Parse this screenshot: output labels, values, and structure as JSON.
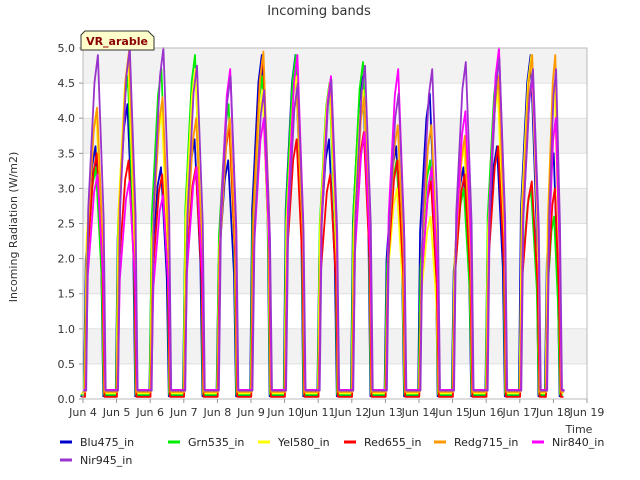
{
  "chart_data": {
    "type": "line",
    "title": "Incoming bands",
    "xlabel": "Time",
    "ylabel": "Incoming Radiation (W/m2)",
    "site_label": "VR_arable",
    "ylim": [
      0,
      5.0
    ],
    "yticks": [
      "0.0",
      "0.5",
      "1.0",
      "1.5",
      "2.0",
      "2.5",
      "3.0",
      "3.5",
      "4.0",
      "4.5",
      "5.0"
    ],
    "xlim": [
      4,
      19
    ],
    "xticks": [
      "Jun 4",
      "Jun 5",
      "Jun 6",
      "Jun 7",
      "Jun 8",
      "Jun 9",
      "Jun 10",
      "Jun 11",
      "Jun 12",
      "Jun 13",
      "Jun 14",
      "Jun 15",
      "Jun 16",
      "Jun 17",
      "Jun 18",
      "Jun 19"
    ],
    "grid": "horizontal-bands",
    "legend_placement": "bottom",
    "days": [
      4.35,
      5.3,
      6.3,
      7.3,
      8.3,
      9.3,
      10.3,
      11.3,
      12.3,
      13.3,
      14.3,
      15.3,
      16.3,
      17.3,
      18.0
    ],
    "series": [
      {
        "name": "Blu475_in",
        "color": "#0000cc",
        "night": 0.04,
        "peaks": [
          3.6,
          4.2,
          3.3,
          3.7,
          3.4,
          4.9,
          4.9,
          3.7,
          4.6,
          3.6,
          4.35,
          3.3,
          3.6,
          4.9,
          3.5
        ]
      },
      {
        "name": "Grn535_in",
        "color": "#00ee00",
        "night": 0.06,
        "peaks": [
          3.3,
          4.6,
          4.7,
          4.9,
          4.2,
          4.6,
          4.9,
          4.5,
          4.8,
          3.4,
          3.4,
          3.0,
          4.7,
          3.0,
          2.6
        ]
      },
      {
        "name": "Yel580_in",
        "color": "#ffff00",
        "night": 0.08,
        "peaks": [
          4.1,
          4.85,
          4.1,
          4.7,
          3.9,
          4.4,
          4.6,
          4.5,
          4.4,
          3.0,
          2.6,
          3.6,
          4.4,
          4.9,
          4.5
        ]
      },
      {
        "name": "Red655_in",
        "color": "#ff0000",
        "night": 0.03,
        "peaks": [
          3.5,
          3.4,
          3.2,
          3.3,
          3.9,
          4.9,
          3.7,
          3.2,
          3.8,
          3.4,
          3.1,
          3.2,
          3.6,
          3.1,
          3.0
        ]
      },
      {
        "name": "Redg715_in",
        "color": "#ff9900",
        "night": 0.1,
        "peaks": [
          4.15,
          4.95,
          4.3,
          4.0,
          4.0,
          4.95,
          4.4,
          4.5,
          4.3,
          3.9,
          3.9,
          3.75,
          4.6,
          4.9,
          4.9
        ]
      },
      {
        "name": "Nir840_in",
        "color": "#ff00ff",
        "night": 0.13,
        "peaks": [
          3.2,
          3.1,
          2.9,
          3.3,
          4.7,
          4.0,
          4.9,
          4.6,
          3.8,
          4.7,
          3.3,
          4.1,
          5.0,
          4.6,
          4.0
        ]
      },
      {
        "name": "Nir945_in",
        "color": "#9933cc",
        "night": 0.12,
        "peaks": [
          4.9,
          5.0,
          5.0,
          4.75,
          4.6,
          4.4,
          4.5,
          4.55,
          4.75,
          4.35,
          4.7,
          4.8,
          4.85,
          4.7,
          4.7
        ]
      }
    ]
  }
}
